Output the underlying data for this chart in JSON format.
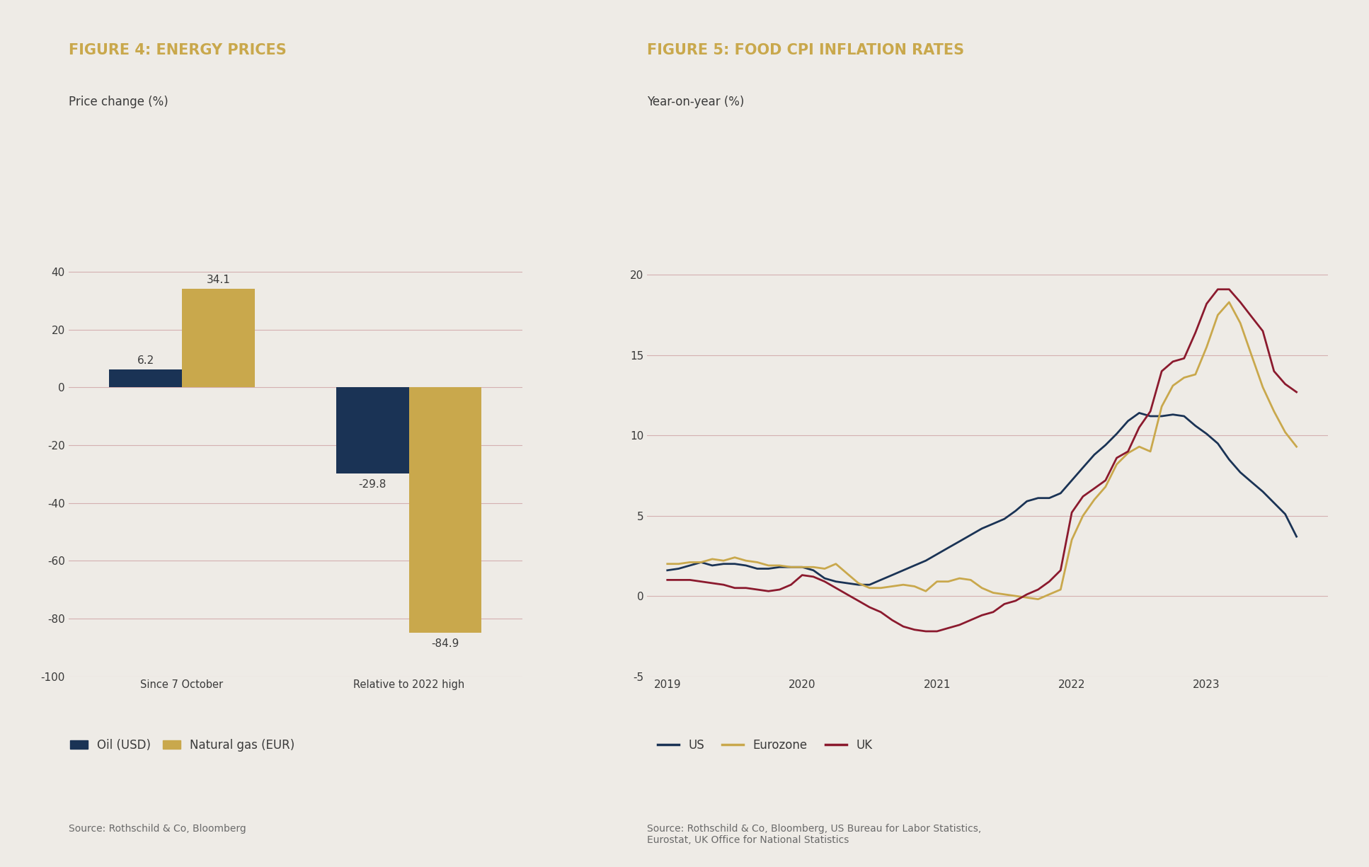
{
  "fig4_title": "FIGURE 4: ENERGY PRICES",
  "fig4_subtitle": "Price change (%)",
  "fig4_source": "Source: Rothschild & Co, Bloomberg",
  "fig4_categories": [
    "Since 7 October",
    "Relative to 2022 high"
  ],
  "fig4_oil_values": [
    6.2,
    -29.8
  ],
  "fig4_gas_values": [
    34.1,
    -84.9
  ],
  "fig4_oil_color": "#1a3355",
  "fig4_gas_color": "#c9a84c",
  "fig4_ylim": [
    -100,
    50
  ],
  "fig4_yticks": [
    -100,
    -80,
    -60,
    -40,
    -20,
    0,
    20,
    40
  ],
  "fig4_legend_oil": "Oil (USD)",
  "fig4_legend_gas": "Natural gas (EUR)",
  "fig5_title": "FIGURE 5: FOOD CPI INFLATION RATES",
  "fig5_subtitle": "Year-on-year (%)",
  "fig5_source": "Source: Rothschild & Co, Bloomberg, US Bureau for Labor Statistics,\nEurostat, UK Office for National Statistics",
  "fig5_ylim": [
    -5,
    22
  ],
  "fig5_yticks": [
    -5,
    0,
    5,
    10,
    15,
    20
  ],
  "fig5_xticks": [
    2019,
    2020,
    2021,
    2022,
    2023
  ],
  "fig5_us_color": "#1a3355",
  "fig5_ez_color": "#c9a84c",
  "fig5_uk_color": "#8b1a2e",
  "fig5_legend_us": "US",
  "fig5_legend_ez": "Eurozone",
  "fig5_legend_uk": "UK",
  "fig5_us_x": [
    2019.0,
    2019.083,
    2019.167,
    2019.25,
    2019.333,
    2019.417,
    2019.5,
    2019.583,
    2019.667,
    2019.75,
    2019.833,
    2019.917,
    2020.0,
    2020.083,
    2020.167,
    2020.25,
    2020.333,
    2020.417,
    2020.5,
    2020.583,
    2020.667,
    2020.75,
    2020.833,
    2020.917,
    2021.0,
    2021.083,
    2021.167,
    2021.25,
    2021.333,
    2021.417,
    2021.5,
    2021.583,
    2021.667,
    2021.75,
    2021.833,
    2021.917,
    2022.0,
    2022.083,
    2022.167,
    2022.25,
    2022.333,
    2022.417,
    2022.5,
    2022.583,
    2022.667,
    2022.75,
    2022.833,
    2022.917,
    2023.0,
    2023.083,
    2023.167,
    2023.25,
    2023.333,
    2023.417,
    2023.5,
    2023.583,
    2023.667
  ],
  "fig5_us_y": [
    1.6,
    1.7,
    1.9,
    2.1,
    1.9,
    2.0,
    2.0,
    1.9,
    1.7,
    1.7,
    1.8,
    1.8,
    1.8,
    1.6,
    1.1,
    0.9,
    0.8,
    0.7,
    0.7,
    1.0,
    1.3,
    1.6,
    1.9,
    2.2,
    2.6,
    3.0,
    3.4,
    3.8,
    4.2,
    4.5,
    4.8,
    5.3,
    5.9,
    6.1,
    6.1,
    6.4,
    7.2,
    8.0,
    8.8,
    9.4,
    10.1,
    10.9,
    11.4,
    11.2,
    11.2,
    11.3,
    11.2,
    10.6,
    10.1,
    9.5,
    8.5,
    7.7,
    7.1,
    6.5,
    5.8,
    5.1,
    3.7
  ],
  "fig5_ez_x": [
    2019.0,
    2019.083,
    2019.167,
    2019.25,
    2019.333,
    2019.417,
    2019.5,
    2019.583,
    2019.667,
    2019.75,
    2019.833,
    2019.917,
    2020.0,
    2020.083,
    2020.167,
    2020.25,
    2020.333,
    2020.417,
    2020.5,
    2020.583,
    2020.667,
    2020.75,
    2020.833,
    2020.917,
    2021.0,
    2021.083,
    2021.167,
    2021.25,
    2021.333,
    2021.417,
    2021.5,
    2021.583,
    2021.667,
    2021.75,
    2021.833,
    2021.917,
    2022.0,
    2022.083,
    2022.167,
    2022.25,
    2022.333,
    2022.417,
    2022.5,
    2022.583,
    2022.667,
    2022.75,
    2022.833,
    2022.917,
    2023.0,
    2023.083,
    2023.167,
    2023.25,
    2023.333,
    2023.417,
    2023.5,
    2023.583,
    2023.667
  ],
  "fig5_ez_y": [
    2.0,
    2.0,
    2.1,
    2.1,
    2.3,
    2.2,
    2.4,
    2.2,
    2.1,
    1.9,
    1.9,
    1.8,
    1.8,
    1.8,
    1.7,
    2.0,
    1.4,
    0.8,
    0.5,
    0.5,
    0.6,
    0.7,
    0.6,
    0.3,
    0.9,
    0.9,
    1.1,
    1.0,
    0.5,
    0.2,
    0.1,
    0.0,
    -0.1,
    -0.2,
    0.1,
    0.4,
    3.5,
    5.0,
    6.0,
    6.8,
    8.2,
    8.9,
    9.3,
    9.0,
    11.8,
    13.1,
    13.6,
    13.8,
    15.5,
    17.5,
    18.3,
    17.0,
    15.0,
    13.0,
    11.5,
    10.2,
    9.3
  ],
  "fig5_uk_x": [
    2019.0,
    2019.083,
    2019.167,
    2019.25,
    2019.333,
    2019.417,
    2019.5,
    2019.583,
    2019.667,
    2019.75,
    2019.833,
    2019.917,
    2020.0,
    2020.083,
    2020.167,
    2020.25,
    2020.333,
    2020.417,
    2020.5,
    2020.583,
    2020.667,
    2020.75,
    2020.833,
    2020.917,
    2021.0,
    2021.083,
    2021.167,
    2021.25,
    2021.333,
    2021.417,
    2021.5,
    2021.583,
    2021.667,
    2021.75,
    2021.833,
    2021.917,
    2022.0,
    2022.083,
    2022.167,
    2022.25,
    2022.333,
    2022.417,
    2022.5,
    2022.583,
    2022.667,
    2022.75,
    2022.833,
    2022.917,
    2023.0,
    2023.083,
    2023.167,
    2023.25,
    2023.333,
    2023.417,
    2023.5,
    2023.583,
    2023.667
  ],
  "fig5_uk_y": [
    1.0,
    1.0,
    1.0,
    0.9,
    0.8,
    0.7,
    0.5,
    0.5,
    0.4,
    0.3,
    0.4,
    0.7,
    1.3,
    1.2,
    0.9,
    0.5,
    0.1,
    -0.3,
    -0.7,
    -1.0,
    -1.5,
    -1.9,
    -2.1,
    -2.2,
    -2.2,
    -2.0,
    -1.8,
    -1.5,
    -1.2,
    -1.0,
    -0.5,
    -0.3,
    0.1,
    0.4,
    0.9,
    1.6,
    5.2,
    6.2,
    6.7,
    7.2,
    8.6,
    9.0,
    10.5,
    11.5,
    14.0,
    14.6,
    14.8,
    16.4,
    18.2,
    19.1,
    19.1,
    18.3,
    17.4,
    16.5,
    14.0,
    13.2,
    12.7
  ],
  "background_color": "#eeebe6",
  "title_color": "#c9a84c",
  "grid_color": "#d4b0b0",
  "text_color": "#3a3a3a",
  "source_color": "#6a6a6a"
}
